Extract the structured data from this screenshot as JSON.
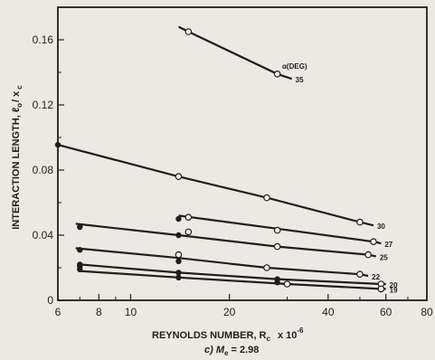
{
  "chart_data": {
    "type": "line",
    "x_scale": "log",
    "xlim": [
      6,
      80
    ],
    "ylim": [
      0,
      0.18
    ],
    "x_ticks": [
      6,
      8,
      10,
      20,
      40,
      60,
      80
    ],
    "x_tick_labels": [
      "6",
      "8",
      "10",
      "20",
      "40",
      "60",
      "80"
    ],
    "y_ticks": [
      0,
      0.04,
      0.08,
      0.12,
      0.16
    ],
    "y_tick_labels": [
      "0",
      "0.04",
      "0.08",
      "0.12",
      "0.16"
    ],
    "xlabel": "REYNOLDS NUMBER, R",
    "xlabel_sub": "c",
    "xlabel_suffix": "x 10",
    "xlabel_exp": "-6",
    "ylabel": "INTERACTION LENGTH, ℓ",
    "ylabel_sub": "o",
    "ylabel_suffix": "/ x",
    "ylabel_sub2": "c",
    "caption": "c) M",
    "caption_sub": "e",
    "caption_suffix": " = 2.98",
    "legend_title": "α(DEG)",
    "grid": false,
    "series": [
      {
        "name": "35",
        "x": [
          14,
          15,
          28,
          31
        ],
        "y": [
          0.168,
          0.165,
          0.139,
          0.136
        ],
        "markers": [
          [
            15,
            0.165,
            "open"
          ],
          [
            28,
            0.139,
            "open"
          ]
        ]
      },
      {
        "name": "30",
        "x": [
          6,
          14,
          26,
          50,
          55
        ],
        "y": [
          0.0955,
          0.076,
          0.063,
          0.048,
          0.046
        ],
        "markers": [
          [
            6,
            0.0955,
            "filled"
          ],
          [
            14,
            0.076,
            "open"
          ],
          [
            26,
            0.063,
            "open"
          ],
          [
            50,
            0.048,
            "open"
          ]
        ]
      },
      {
        "name": "27",
        "x": [
          14,
          28,
          55,
          58
        ],
        "y": [
          0.052,
          0.044,
          0.036,
          0.035
        ],
        "markers": [
          [
            14,
            0.05,
            "filled"
          ],
          [
            15,
            0.051,
            "open"
          ],
          [
            28,
            0.043,
            "open"
          ],
          [
            55,
            0.036,
            "open"
          ]
        ]
      },
      {
        "name": "25",
        "x": [
          6.8,
          14,
          28,
          53,
          56
        ],
        "y": [
          0.047,
          0.04,
          0.033,
          0.028,
          0.027
        ],
        "markers": [
          [
            7,
            0.045,
            "filled"
          ],
          [
            14,
            0.04,
            "filled"
          ],
          [
            15,
            0.042,
            "open"
          ],
          [
            28,
            0.033,
            "open"
          ],
          [
            53,
            0.028,
            "open"
          ]
        ]
      },
      {
        "name": "22",
        "x": [
          6.8,
          14,
          26,
          50,
          53
        ],
        "y": [
          0.032,
          0.026,
          0.02,
          0.016,
          0.015
        ],
        "markers": [
          [
            7,
            0.031,
            "filled"
          ],
          [
            14,
            0.024,
            "filled"
          ],
          [
            14,
            0.028,
            "open"
          ],
          [
            26,
            0.02,
            "open"
          ],
          [
            50,
            0.016,
            "open"
          ]
        ]
      },
      {
        "name": "20",
        "x": [
          7,
          14,
          28,
          58,
          60
        ],
        "y": [
          0.022,
          0.017,
          0.013,
          0.01,
          0.01
        ],
        "markers": [
          [
            7,
            0.022,
            "filled"
          ],
          [
            7,
            0.021,
            "filled"
          ],
          [
            14,
            0.017,
            "filled"
          ],
          [
            28,
            0.013,
            "filled"
          ],
          [
            58,
            0.01,
            "open"
          ]
        ]
      },
      {
        "name": "19",
        "x": [
          7,
          14,
          30,
          58,
          60
        ],
        "y": [
          0.018,
          0.014,
          0.01,
          0.007,
          0.007
        ],
        "markers": [
          [
            7,
            0.019,
            "filled"
          ],
          [
            14,
            0.014,
            "filled"
          ],
          [
            28,
            0.011,
            "filled"
          ],
          [
            30,
            0.01,
            "open"
          ],
          [
            58,
            0.007,
            "open"
          ]
        ]
      }
    ]
  }
}
